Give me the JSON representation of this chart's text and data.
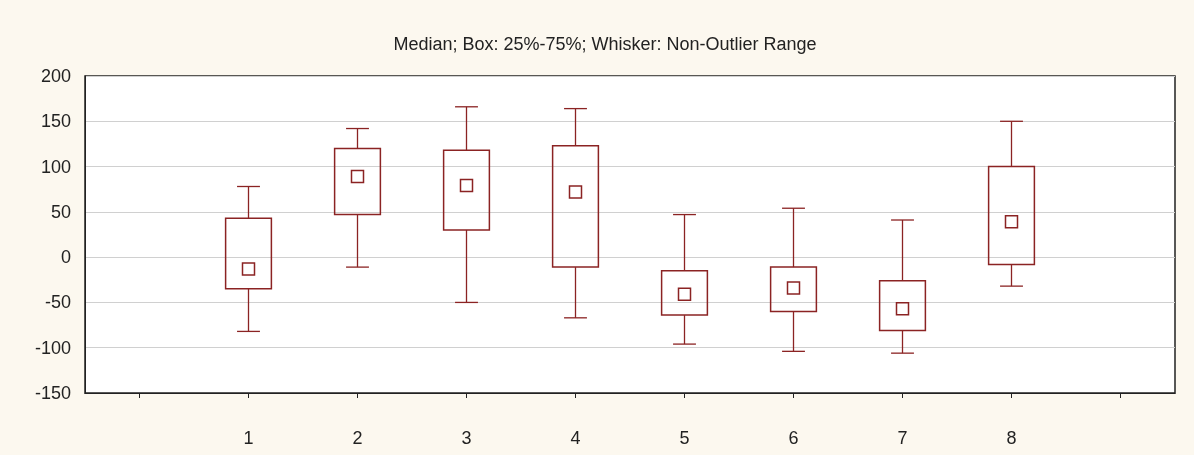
{
  "chart_data": {
    "type": "box",
    "title": "Median; Box: 25%-75%; Whisker: Non-Outlier Range",
    "categories": [
      null,
      "1",
      "2",
      "3",
      "4",
      "5",
      "6",
      "7",
      "8",
      null
    ],
    "series": [
      {
        "color": "#8b2323",
        "boxes": [
          null,
          {
            "low": -82,
            "q1": -35,
            "median": -13,
            "q3": 43,
            "high": 78
          },
          {
            "low": -11,
            "q1": 47,
            "median": 89,
            "q3": 120,
            "high": 142
          },
          {
            "low": -50,
            "q1": 30,
            "median": 79,
            "q3": 118,
            "high": 166
          },
          {
            "low": -67,
            "q1": -11,
            "median": 72,
            "q3": 123,
            "high": 164
          },
          {
            "low": -96,
            "q1": -64,
            "median": -41,
            "q3": -15,
            "high": 47
          },
          {
            "low": -104,
            "q1": -60,
            "median": -34,
            "q3": -11,
            "high": 54
          },
          {
            "low": -106,
            "q1": -81,
            "median": -57,
            "q3": -26,
            "high": 41
          },
          {
            "low": -32,
            "q1": -8,
            "median": 39,
            "q3": 100,
            "high": 150
          },
          null
        ]
      }
    ],
    "ylim": [
      -150,
      200
    ],
    "yticks": [
      -150,
      -100,
      -50,
      0,
      50,
      100,
      150,
      200
    ],
    "grid": "y",
    "marker": "square"
  }
}
